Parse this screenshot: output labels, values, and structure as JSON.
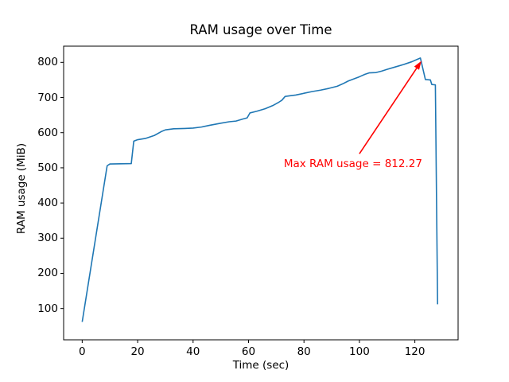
{
  "figure": {
    "background": "#ffffff",
    "spine_color": "#000000",
    "text_color": "#000000"
  },
  "chart_data": {
    "type": "line",
    "title": "RAM usage over Time",
    "xlabel": "Time (sec)",
    "ylabel": "RAM usage (MiB)",
    "x_ticks": [
      0,
      20,
      40,
      60,
      80,
      100,
      120
    ],
    "y_ticks": [
      100,
      200,
      300,
      400,
      500,
      600,
      700,
      800
    ],
    "xlim": [
      -6.7,
      135.6
    ],
    "ylim": [
      11,
      846
    ],
    "grid": false,
    "legend": null,
    "series": [
      {
        "name": "RAM usage",
        "color": "#1f77b4",
        "points": [
          [
            0,
            62
          ],
          [
            9,
            506
          ],
          [
            10,
            511
          ],
          [
            17.7,
            512
          ],
          [
            18.6,
            576
          ],
          [
            20,
            580
          ],
          [
            23,
            584
          ],
          [
            26,
            592
          ],
          [
            28.5,
            603
          ],
          [
            30,
            608
          ],
          [
            33,
            611
          ],
          [
            37,
            612
          ],
          [
            40,
            613
          ],
          [
            43,
            616
          ],
          [
            46,
            621
          ],
          [
            50,
            627
          ],
          [
            53,
            631
          ],
          [
            55.5,
            633
          ],
          [
            58,
            639
          ],
          [
            59.5,
            642
          ],
          [
            60.5,
            656
          ],
          [
            63,
            661
          ],
          [
            66,
            668
          ],
          [
            69,
            678
          ],
          [
            71,
            687
          ],
          [
            72,
            692
          ],
          [
            73.2,
            703
          ],
          [
            75,
            705
          ],
          [
            77,
            707
          ],
          [
            80,
            712
          ],
          [
            83,
            717
          ],
          [
            86,
            721
          ],
          [
            89,
            726
          ],
          [
            92,
            732
          ],
          [
            94,
            739
          ],
          [
            96,
            747
          ],
          [
            98,
            753
          ],
          [
            100,
            759
          ],
          [
            102,
            766
          ],
          [
            103.5,
            770
          ],
          [
            106,
            771
          ],
          [
            108,
            775
          ],
          [
            110,
            780
          ],
          [
            113,
            787
          ],
          [
            116,
            794
          ],
          [
            119,
            802
          ],
          [
            121,
            809
          ],
          [
            122,
            812.27
          ],
          [
            123.8,
            751
          ],
          [
            125.6,
            750
          ],
          [
            126.1,
            737
          ],
          [
            127.4,
            736
          ],
          [
            128.2,
            112
          ]
        ]
      }
    ],
    "annotation": {
      "text": "Max RAM usage = 812.27",
      "color": "#ff0000",
      "max_value": 812.27,
      "target_xy": [
        122,
        812.27
      ],
      "text_center_xy": [
        97.7,
        512
      ],
      "arrow_start_xy": [
        100,
        540
      ],
      "arrow_end_xy": [
        122.4,
        804
      ]
    }
  }
}
